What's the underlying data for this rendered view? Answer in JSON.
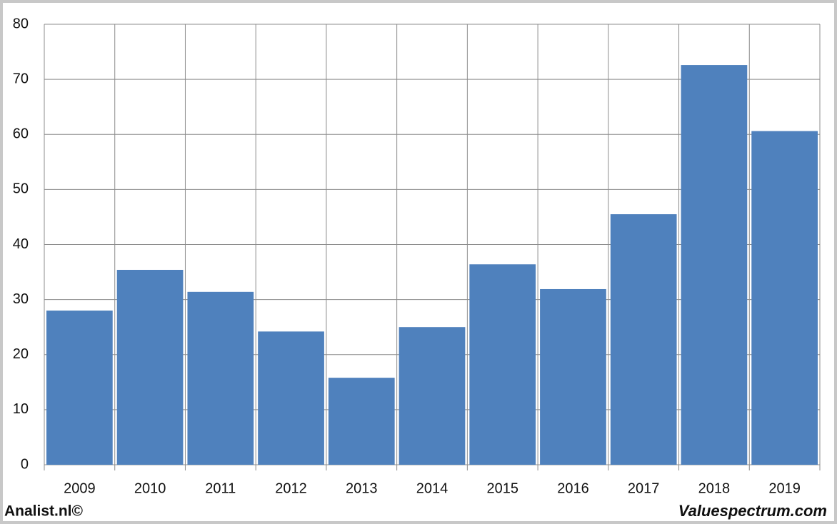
{
  "chart_data": {
    "type": "bar",
    "categories": [
      "2009",
      "2010",
      "2011",
      "2012",
      "2013",
      "2014",
      "2015",
      "2016",
      "2017",
      "2018",
      "2019"
    ],
    "values": [
      28,
      35.4,
      31.4,
      24.2,
      15.8,
      25,
      36.4,
      31.9,
      45.5,
      72.6,
      60.6
    ],
    "color": "#4f81bd",
    "ylim": [
      0,
      80
    ],
    "yticks": [
      0,
      10,
      20,
      30,
      40,
      50,
      60,
      70,
      80
    ],
    "grid": true
  },
  "footer": {
    "left": "Analist.nl©",
    "right": "Valuespectrum.com"
  }
}
